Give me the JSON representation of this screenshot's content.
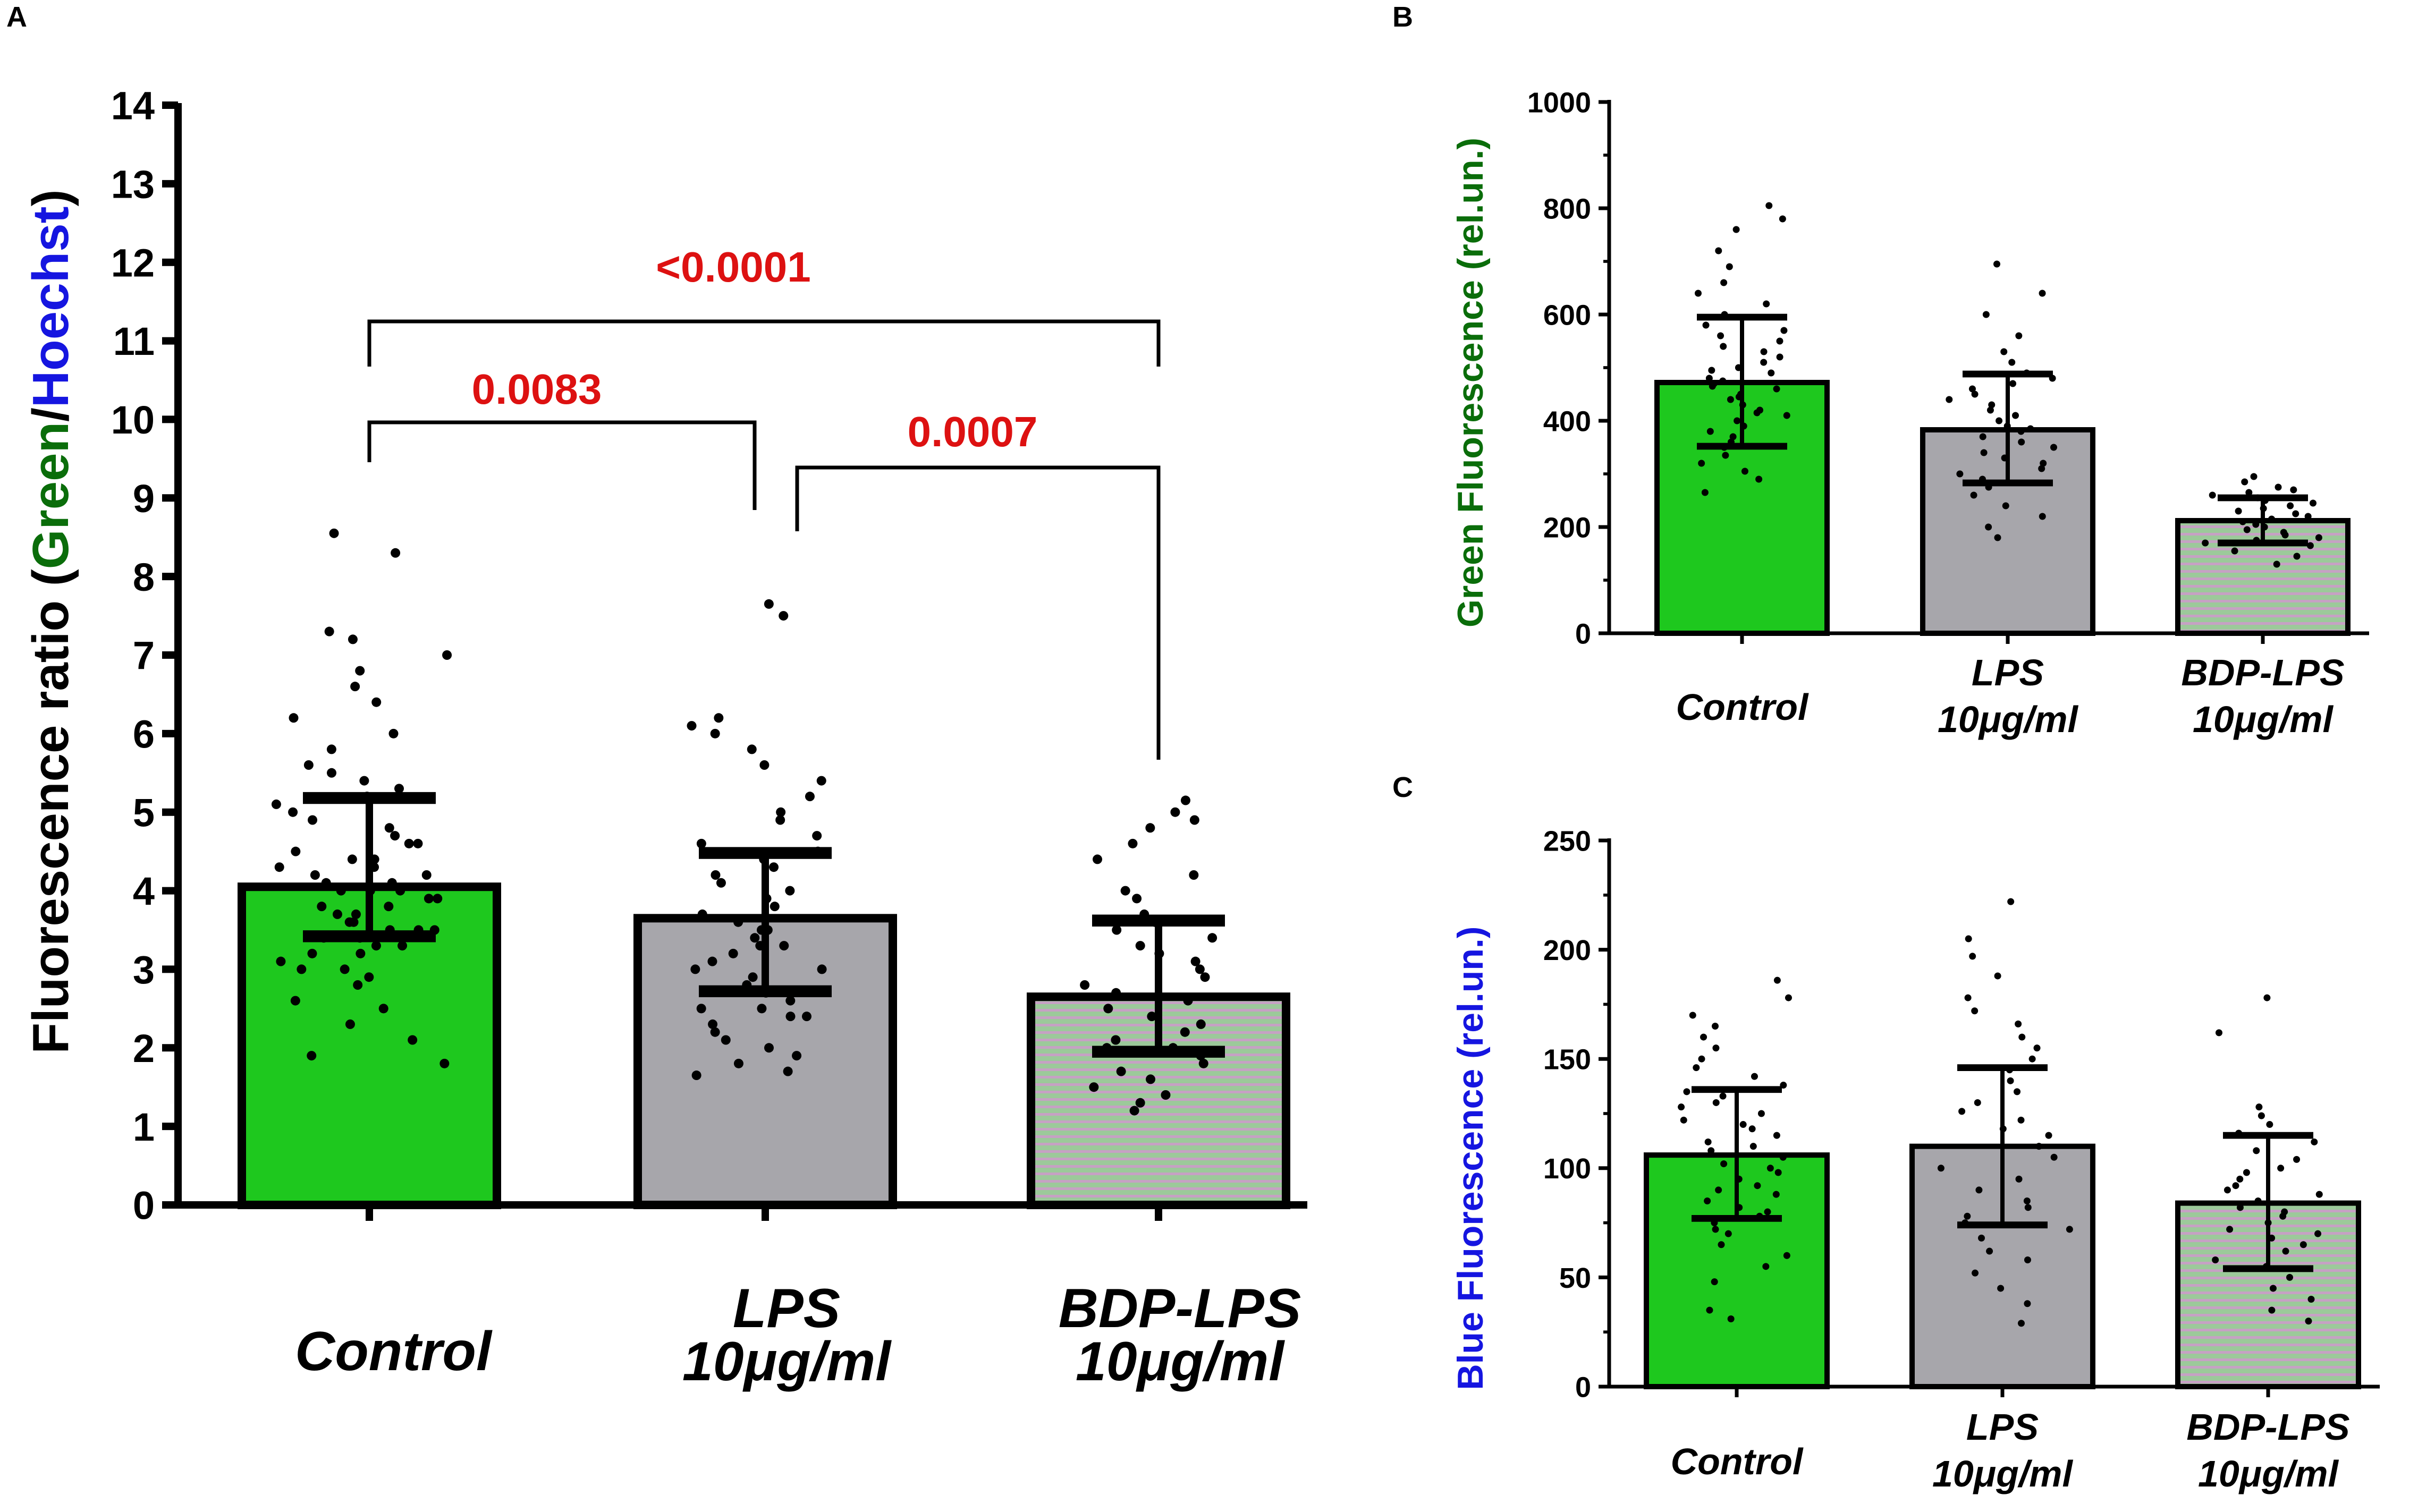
{
  "colors": {
    "control_fill": "#1ec81e",
    "lps_fill": "#a7a6ab",
    "bdp_fill": "#9cc99a",
    "bdp_stripe": "#c6a1c4",
    "green_text": "#0a6d0a",
    "blue_text": "#1515e0",
    "sig_red": "#dd1111"
  },
  "chart_data": [
    {
      "panel": "A",
      "type": "bar",
      "ylabel_parts": [
        {
          "text": "Fluorescence ratio (",
          "color": "#000000"
        },
        {
          "text": "Green",
          "color": "#0a6d0a"
        },
        {
          "text": "/",
          "color": "#000000"
        },
        {
          "text": "Hoechst",
          "color": "#1515e0"
        },
        {
          "text": ")",
          "color": "#000000"
        }
      ],
      "ylim": [
        0,
        14
      ],
      "yticks": [
        0,
        1,
        2,
        3,
        4,
        5,
        6,
        7,
        8,
        9,
        10,
        11,
        12,
        13,
        14
      ],
      "categories": [
        {
          "name": "Control",
          "lines": [
            "Control"
          ]
        },
        {
          "name": "LPS 10µg/ml",
          "lines": [
            "LPS",
            "10μg/ml"
          ]
        },
        {
          "name": "BDP-LPS 10µg/ml",
          "lines": [
            "BDP-LPS",
            "10μg/ml"
          ]
        }
      ],
      "values": [
        4.05,
        3.65,
        2.65
      ],
      "err_low": [
        3.42,
        2.72,
        1.95
      ],
      "err_high": [
        5.18,
        4.48,
        3.62
      ],
      "points": [
        [
          1.8,
          1.9,
          2.1,
          2.3,
          2.5,
          2.6,
          2.8,
          2.9,
          3.0,
          3.0,
          3.1,
          3.2,
          3.2,
          3.3,
          3.3,
          3.4,
          3.4,
          3.5,
          3.5,
          3.5,
          3.6,
          3.6,
          3.7,
          3.7,
          3.8,
          3.8,
          3.9,
          3.9,
          4.0,
          4.0,
          4.0,
          4.1,
          4.1,
          4.2,
          4.2,
          4.3,
          4.3,
          4.4,
          4.4,
          4.5,
          4.6,
          4.6,
          4.7,
          4.8,
          4.9,
          5.0,
          5.1,
          5.2,
          5.3,
          5.4,
          5.5,
          5.6,
          5.8,
          6.0,
          6.2,
          6.4,
          6.6,
          6.8,
          7.0,
          7.2,
          7.3,
          8.3,
          8.55
        ],
        [
          1.65,
          1.7,
          1.8,
          1.9,
          2.0,
          2.1,
          2.2,
          2.3,
          2.4,
          2.4,
          2.5,
          2.5,
          2.6,
          2.7,
          2.8,
          2.9,
          3.0,
          3.0,
          3.1,
          3.2,
          3.3,
          3.3,
          3.4,
          3.5,
          3.5,
          3.6,
          3.7,
          3.8,
          3.9,
          4.0,
          4.1,
          4.2,
          4.3,
          4.4,
          4.5,
          4.6,
          4.7,
          4.9,
          5.0,
          5.2,
          5.4,
          5.6,
          5.8,
          6.0,
          6.1,
          6.2,
          7.5,
          7.65
        ],
        [
          1.2,
          1.3,
          1.4,
          1.5,
          1.6,
          1.7,
          1.8,
          1.9,
          2.0,
          2.0,
          2.1,
          2.2,
          2.3,
          2.4,
          2.5,
          2.6,
          2.7,
          2.8,
          2.9,
          3.0,
          3.1,
          3.2,
          3.3,
          3.4,
          3.5,
          3.6,
          3.7,
          3.9,
          4.0,
          4.2,
          4.4,
          4.6,
          4.8,
          4.9,
          5.0,
          5.15
        ]
      ],
      "comparisons": [
        {
          "from": 0,
          "to": 1,
          "label": "0.0083"
        },
        {
          "from": 1,
          "to": 2,
          "label": "0.0007"
        },
        {
          "from": 0,
          "to": 2,
          "label": "<0.0001"
        }
      ]
    },
    {
      "panel": "B",
      "type": "bar",
      "ylabel_parts": [
        {
          "text": "Green Fluorescence (rel.un.)",
          "color": "#0a6d0a"
        }
      ],
      "ylim": [
        0,
        1000
      ],
      "yticks": [
        0,
        200,
        400,
        600,
        800,
        1000
      ],
      "categories": [
        {
          "name": "Control",
          "lines": [
            "Control"
          ]
        },
        {
          "name": "LPS 10µg/ml",
          "lines": [
            "LPS",
            "10μg/ml"
          ]
        },
        {
          "name": "BDP-LPS 10µg/ml",
          "lines": [
            "BDP-LPS",
            "10μg/ml"
          ]
        }
      ],
      "values": [
        472,
        383,
        212
      ],
      "err_low": [
        352,
        283,
        170
      ],
      "err_high": [
        595,
        488,
        255
      ],
      "points": [
        [
          265,
          290,
          305,
          320,
          335,
          350,
          360,
          370,
          380,
          390,
          400,
          410,
          415,
          420,
          430,
          440,
          445,
          450,
          460,
          465,
          470,
          475,
          480,
          490,
          495,
          500,
          510,
          520,
          530,
          540,
          550,
          560,
          570,
          580,
          600,
          620,
          640,
          660,
          690,
          720,
          760,
          780,
          805
        ],
        [
          180,
          200,
          220,
          240,
          260,
          275,
          290,
          300,
          310,
          320,
          330,
          340,
          350,
          360,
          370,
          380,
          385,
          390,
          400,
          410,
          420,
          430,
          440,
          450,
          460,
          470,
          480,
          490,
          510,
          530,
          560,
          600,
          640,
          695
        ],
        [
          130,
          145,
          155,
          165,
          170,
          175,
          180,
          185,
          190,
          195,
          200,
          205,
          210,
          215,
          220,
          225,
          230,
          235,
          240,
          245,
          250,
          255,
          260,
          265,
          270,
          275,
          285,
          295
        ]
      ]
    },
    {
      "panel": "C",
      "type": "bar",
      "ylabel_parts": [
        {
          "text": "Blue Fluorescence (rel.un.)",
          "color": "#1515e0"
        }
      ],
      "ylim": [
        0,
        250
      ],
      "yticks": [
        0,
        50,
        100,
        150,
        200,
        250
      ],
      "categories": [
        {
          "name": "Control",
          "lines": [
            "Control"
          ]
        },
        {
          "name": "LPS 10µg/ml",
          "lines": [
            "LPS",
            "10μg/ml"
          ]
        },
        {
          "name": "BDP-LPS 10µg/ml",
          "lines": [
            "BDP-LPS",
            "10μg/ml"
          ]
        }
      ],
      "values": [
        106,
        110,
        84
      ],
      "err_low": [
        77,
        74,
        54
      ],
      "err_high": [
        136,
        146,
        115
      ],
      "points": [
        [
          31,
          35,
          48,
          55,
          60,
          65,
          70,
          72,
          75,
          78,
          80,
          82,
          85,
          88,
          90,
          92,
          95,
          98,
          100,
          102,
          105,
          108,
          110,
          112,
          115,
          118,
          120,
          122,
          125,
          128,
          130,
          133,
          135,
          138,
          142,
          146,
          150,
          155,
          160,
          165,
          170,
          178,
          186
        ],
        [
          29,
          38,
          45,
          52,
          58,
          62,
          68,
          72,
          75,
          78,
          82,
          85,
          90,
          95,
          100,
          105,
          110,
          115,
          118,
          122,
          126,
          130,
          135,
          140,
          145,
          150,
          155,
          160,
          166,
          172,
          178,
          188,
          197,
          205,
          222
        ],
        [
          30,
          35,
          40,
          45,
          50,
          55,
          58,
          62,
          65,
          68,
          70,
          72,
          75,
          78,
          80,
          82,
          85,
          88,
          90,
          92,
          95,
          98,
          100,
          104,
          108,
          112,
          116,
          120,
          124,
          128,
          162,
          178
        ]
      ]
    }
  ]
}
